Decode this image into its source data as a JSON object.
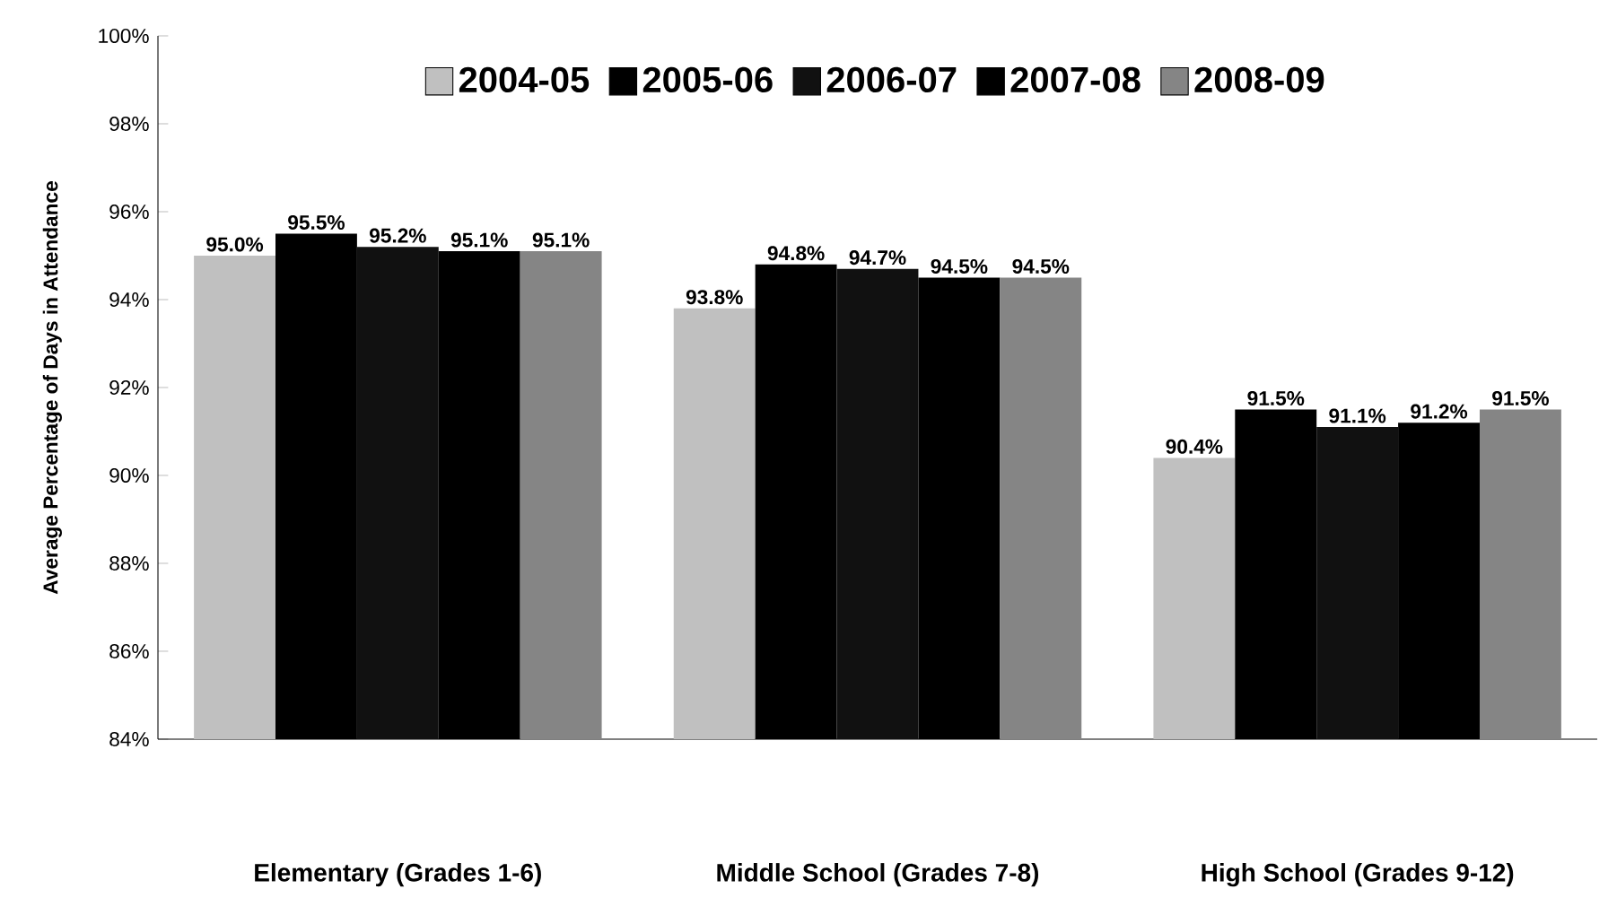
{
  "chart_data": {
    "type": "bar",
    "ylabel": "Average Percentage of Days in Attendance",
    "categories": [
      "Elementary (Grades 1-6)",
      "Middle School (Grades 7-8)",
      "High School (Grades 9-12)"
    ],
    "series": [
      {
        "name": "2004-05",
        "color": "#c0c0c0",
        "values": [
          95.0,
          93.8,
          90.4
        ],
        "value_labels": [
          "95.0%",
          "93.8%",
          "90.4%"
        ]
      },
      {
        "name": "2005-06",
        "color": "#000000",
        "values": [
          95.5,
          94.8,
          91.5
        ],
        "value_labels": [
          "95.5%",
          "94.8%",
          "91.5%"
        ]
      },
      {
        "name": "2006-07",
        "color": "#111111",
        "values": [
          95.2,
          94.7,
          91.1
        ],
        "value_labels": [
          "95.2%",
          "94.7%",
          "91.1%"
        ]
      },
      {
        "name": "2007-08",
        "color": "#000000",
        "values": [
          95.1,
          94.5,
          91.2
        ],
        "value_labels": [
          "95.1%",
          "94.5%",
          "91.2%"
        ]
      },
      {
        "name": "2008-09",
        "color": "#858585",
        "values": [
          95.1,
          94.5,
          91.5
        ],
        "value_labels": [
          "95.1%",
          "94.5%",
          "91.5%"
        ]
      }
    ],
    "ylim": [
      84,
      100
    ],
    "yticks": [
      {
        "value": 84,
        "label": "84%"
      },
      {
        "value": 86,
        "label": "86%"
      },
      {
        "value": 88,
        "label": "88%"
      },
      {
        "value": 90,
        "label": "90%"
      },
      {
        "value": 92,
        "label": "92%"
      },
      {
        "value": 94,
        "label": "94%"
      },
      {
        "value": 96,
        "label": "96%"
      },
      {
        "value": 98,
        "label": "98%"
      },
      {
        "value": 100,
        "label": "100%"
      }
    ],
    "grid": false,
    "stacked": false,
    "legend": "top"
  }
}
